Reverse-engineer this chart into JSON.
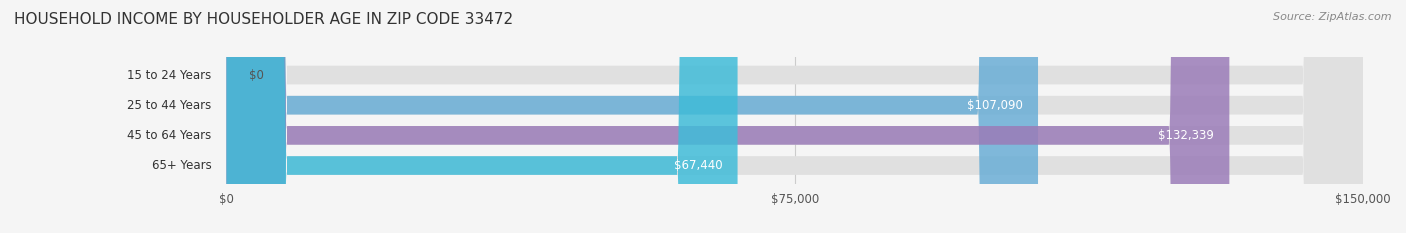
{
  "title": "HOUSEHOLD INCOME BY HOUSEHOLDER AGE IN ZIP CODE 33472",
  "source": "Source: ZipAtlas.com",
  "categories": [
    "15 to 24 Years",
    "25 to 44 Years",
    "45 to 64 Years",
    "65+ Years"
  ],
  "values": [
    0,
    107090,
    132339,
    67440
  ],
  "labels": [
    "$0",
    "$107,090",
    "$132,339",
    "$67,440"
  ],
  "bar_colors": [
    "#f08080",
    "#6aaed6",
    "#9b7cb8",
    "#40bcd8"
  ],
  "background_color": "#f0f0f0",
  "bar_bg_color": "#e8e8e8",
  "x_max": 150000,
  "x_ticks": [
    0,
    75000,
    150000
  ],
  "x_tick_labels": [
    "$0",
    "$75,000",
    "$150,000"
  ],
  "title_fontsize": 11,
  "source_fontsize": 8,
  "label_fontsize": 8.5,
  "category_fontsize": 8.5
}
